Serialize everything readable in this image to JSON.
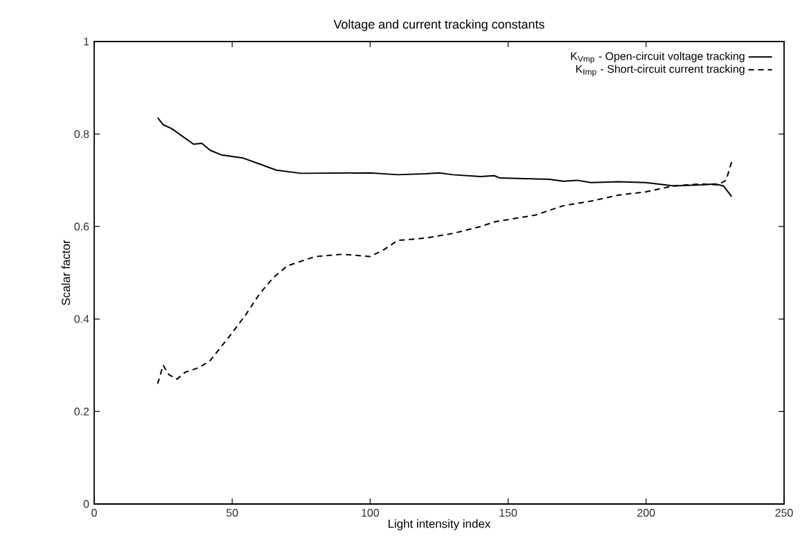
{
  "chart_data": {
    "type": "line",
    "title": "Voltage and current tracking constants",
    "xlabel": "Light intensity index",
    "ylabel": "Scalar factor",
    "xlim": [
      0,
      250
    ],
    "ylim": [
      0,
      1
    ],
    "xticks": [
      0,
      50,
      100,
      150,
      200,
      250
    ],
    "yticks": [
      0,
      0.2,
      0.4,
      0.6,
      0.8,
      1
    ],
    "legend": "top right",
    "grid": false,
    "series": [
      {
        "name": "K$_{Vmp}$ - Open-circuit voltage tracking",
        "color": "#000000",
        "line_style": "solid",
        "x": [
          23,
          25,
          28,
          32,
          36,
          39,
          42,
          46,
          54,
          60,
          66,
          75,
          100,
          110,
          120,
          125,
          130,
          140,
          145,
          147,
          160,
          165,
          170,
          175,
          180,
          190,
          200,
          210,
          220,
          225,
          228,
          231
        ],
        "values": [
          0.835,
          0.82,
          0.812,
          0.795,
          0.778,
          0.78,
          0.765,
          0.755,
          0.748,
          0.735,
          0.722,
          0.715,
          0.716,
          0.712,
          0.714,
          0.716,
          0.712,
          0.708,
          0.71,
          0.705,
          0.703,
          0.702,
          0.698,
          0.7,
          0.695,
          0.697,
          0.695,
          0.688,
          0.69,
          0.692,
          0.688,
          0.665
        ]
      },
      {
        "name": "K$_{Imp}$ - Short-circuit current tracking",
        "color": "#000000",
        "line_style": "dashed",
        "x": [
          23,
          25,
          27,
          30,
          33,
          38,
          42,
          46,
          50,
          55,
          60,
          65,
          70,
          80,
          90,
          100,
          105,
          110,
          120,
          130,
          140,
          145,
          150,
          160,
          170,
          180,
          190,
          200,
          210,
          220,
          226,
          229,
          231
        ],
        "values": [
          0.26,
          0.3,
          0.28,
          0.27,
          0.285,
          0.295,
          0.31,
          0.34,
          0.37,
          0.41,
          0.455,
          0.49,
          0.515,
          0.535,
          0.54,
          0.535,
          0.55,
          0.57,
          0.575,
          0.585,
          0.6,
          0.61,
          0.615,
          0.625,
          0.645,
          0.655,
          0.668,
          0.675,
          0.688,
          0.692,
          0.69,
          0.7,
          0.74
        ]
      }
    ]
  }
}
